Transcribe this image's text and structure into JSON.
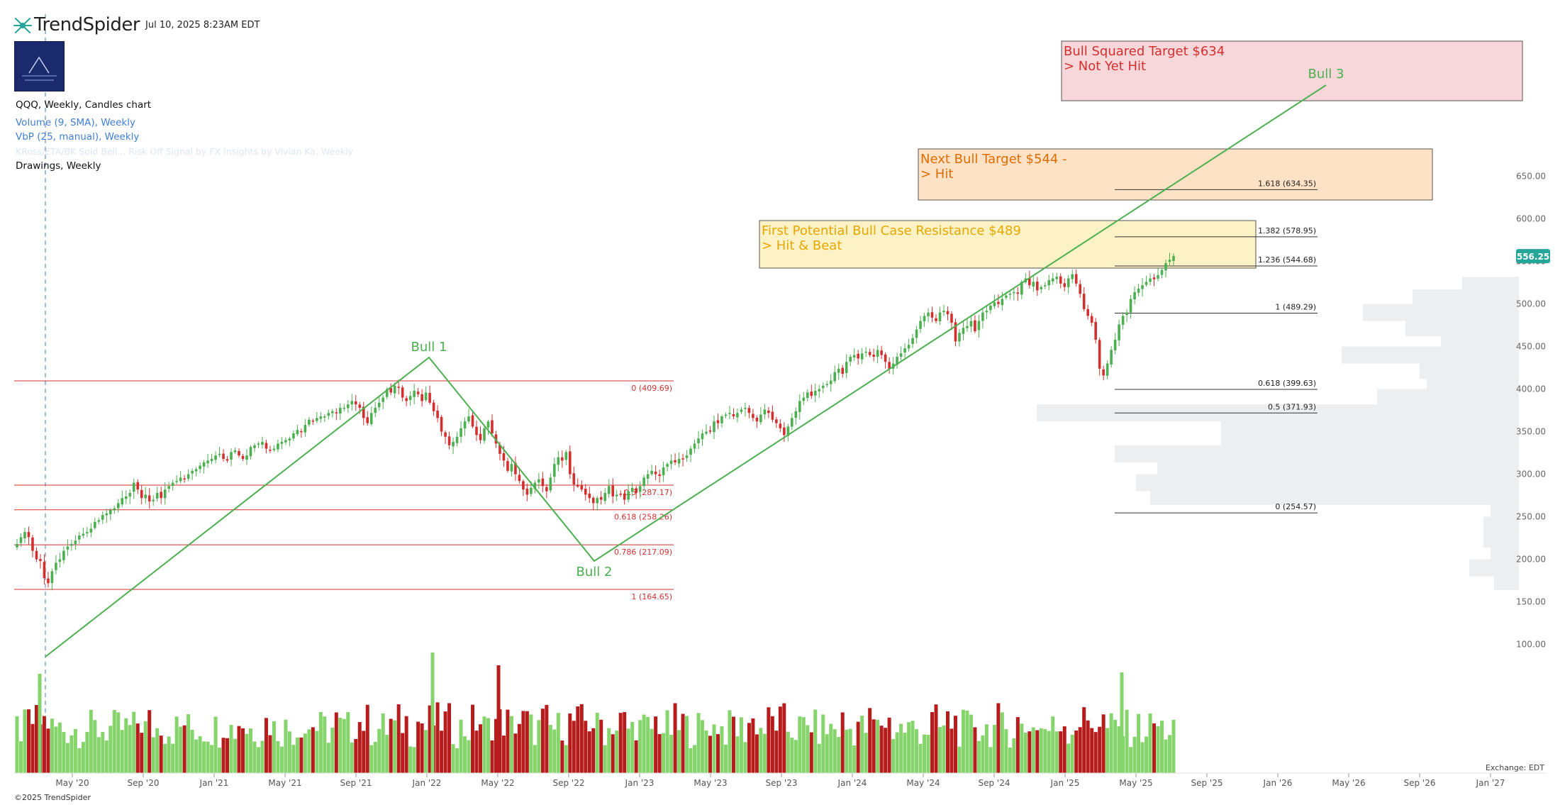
{
  "header": {
    "brand": "TrendSpider",
    "datetime": "Jul 10, 2025 8:23AM EDT",
    "badge_icon": "channel-logo-icon"
  },
  "legend": {
    "title": "QQQ, Weekly, Candles chart",
    "volume": "Volume (9, SMA), Weekly",
    "vbp": "VbP (25, manual), Weekly",
    "faded": "KRoss/ETA/BK Sold Bell... Risk Off Signal by FX Insights by Vivian Ka, Weekly",
    "drawings": "Drawings, Weekly"
  },
  "footer": {
    "copyright": "©2025 TrendSpider",
    "exchange": "Exchange: EDT"
  },
  "colors": {
    "up": "#4caf50",
    "down": "#d32f2f",
    "vol_up": "#86d46c",
    "vol_down": "#b71c1c",
    "trend": "#4caf50",
    "fib_left": "#d32f2f",
    "fib_right": "#333333",
    "price_badge": "#26a69a",
    "vbp": "#eceff1"
  },
  "chart_data": {
    "type": "candlestick",
    "symbol": "QQQ",
    "interval": "Weekly",
    "y_ticks": [
      100,
      150,
      200,
      250,
      300,
      350,
      400,
      450,
      500,
      550,
      600,
      650
    ],
    "x_ticks": [
      "May '20",
      "Sep '20",
      "Jan '21",
      "May '21",
      "Sep '21",
      "Jan '22",
      "May '22",
      "Sep '22",
      "Jan '23",
      "May '23",
      "Sep '23",
      "Jan '24",
      "May '24",
      "Sep '24",
      "Jan '25",
      "May '25",
      "Sep '25",
      "Jan '26",
      "May '26",
      "Sep '26",
      "Jan '27"
    ],
    "last_price": "556.25",
    "trendline_labels": [
      "Bull 1",
      "Bull 2",
      "Bull 3"
    ],
    "fib_left": [
      {
        "label": "0 (409.69)",
        "value": 409.69
      },
      {
        "label": "0.5 (287.17)",
        "value": 287.17
      },
      {
        "label": "0.618 (258.26)",
        "value": 258.26
      },
      {
        "label": "0.786 (217.09)",
        "value": 217.09
      },
      {
        "label": "1 (164.65)",
        "value": 164.65
      }
    ],
    "fib_right": [
      {
        "label": "1.618 (634.35)",
        "value": 634.35
      },
      {
        "label": "1.382 (578.95)",
        "value": 578.95
      },
      {
        "label": "1.236 (544.68)",
        "value": 544.68
      },
      {
        "label": "1 (489.29)",
        "value": 489.29
      },
      {
        "label": "0.618 (399.63)",
        "value": 399.63
      },
      {
        "label": "0.5 (371.93)",
        "value": 371.93
      },
      {
        "label": "0 (254.57)",
        "value": 254.57
      }
    ],
    "zones": [
      {
        "line1": "Bull Squared Target $634",
        "line2": "> Not Yet Hit",
        "fill": "#f8d7da",
        "text": "#d32f2f"
      },
      {
        "line1": "Next Bull Target $544 -",
        "line2": "> Hit",
        "fill": "#fde2c6",
        "text": "#e06c00"
      },
      {
        "line1": "First Potential Bull Case Resistance $489",
        "line2": "> Hit & Beat",
        "fill": "#fdf1c6",
        "text": "#e6a800"
      }
    ],
    "closes": [
      [
        218,
        226,
        232,
        226,
        210,
        200,
        198,
        178,
        172,
        186,
        196,
        200,
        210,
        215,
        218,
        222,
        228,
        230,
        232,
        236,
        244,
        246,
        252,
        254,
        258,
        260,
        266,
        272,
        274,
        278,
        290,
        282,
        272,
        276,
        268,
        270,
        278,
        272,
        282,
        286,
        290,
        292,
        296,
        294,
        300,
        304,
        306,
        310,
        314,
        316,
        318,
        322,
        324,
        318,
        316,
        326,
        328,
        322,
        318,
        322,
        332,
        334,
        336,
        338,
        330,
        328,
        330,
        336,
        338,
        340,
        342,
        348,
        352,
        350,
        358,
        364,
        362,
        366,
        368,
        368,
        372,
        374,
        372,
        378,
        378,
        382,
        386,
        382,
        378,
        366,
        360,
        372,
        378,
        384,
        390,
        400,
        396,
        404,
        402,
        390,
        386,
        392,
        398,
        394,
        386,
        396,
        384,
        374,
        366,
        350,
        344,
        334,
        338,
        344,
        354,
        362,
        368,
        356,
        346,
        340,
        354,
        362,
        348,
        336,
        324,
        316,
        304,
        312,
        300,
        292,
        282,
        276,
        284,
        290,
        294,
        286,
        280,
        296,
        312,
        320,
        316,
        326,
        300,
        288,
        286,
        282,
        276,
        272,
        266,
        272,
        270,
        278,
        286,
        274,
        276,
        276,
        270,
        280,
        284,
        278,
        286,
        296,
        300,
        304,
        300,
        298,
        308,
        312,
        316,
        314,
        318,
        318,
        322,
        330,
        336,
        342,
        348,
        350,
        350,
        362,
        360,
        368,
        370,
        372,
        368,
        372,
        376,
        378,
        372,
        366,
        362,
        370,
        376,
        372,
        364,
        360,
        354,
        346,
        356,
        366,
        374,
        386,
        390,
        396,
        392,
        398,
        400,
        404,
        406,
        410,
        420,
        424,
        418,
        432,
        438,
        440,
        436,
        442,
        444,
        440,
        438,
        446,
        440,
        432,
        424,
        430,
        438,
        442,
        448,
        452,
        460,
        470,
        480,
        486,
        490,
        484,
        480,
        490,
        492,
        488,
        478,
        456,
        466,
        472,
        474,
        480,
        468,
        480,
        490,
        492,
        498,
        502,
        500,
        506,
        510,
        512,
        514,
        512,
        526,
        530,
        522,
        526,
        516,
        520,
        522,
        528,
        530,
        532,
        524,
        520,
        530,
        535,
        524,
        512,
        494,
        486,
        478,
        458,
        424,
        416,
        430,
        446,
        458,
        476,
        486,
        490,
        506,
        514,
        518,
        522,
        526,
        530,
        529,
        534,
        540,
        548,
        552,
        556.25
      ]
    ]
  }
}
